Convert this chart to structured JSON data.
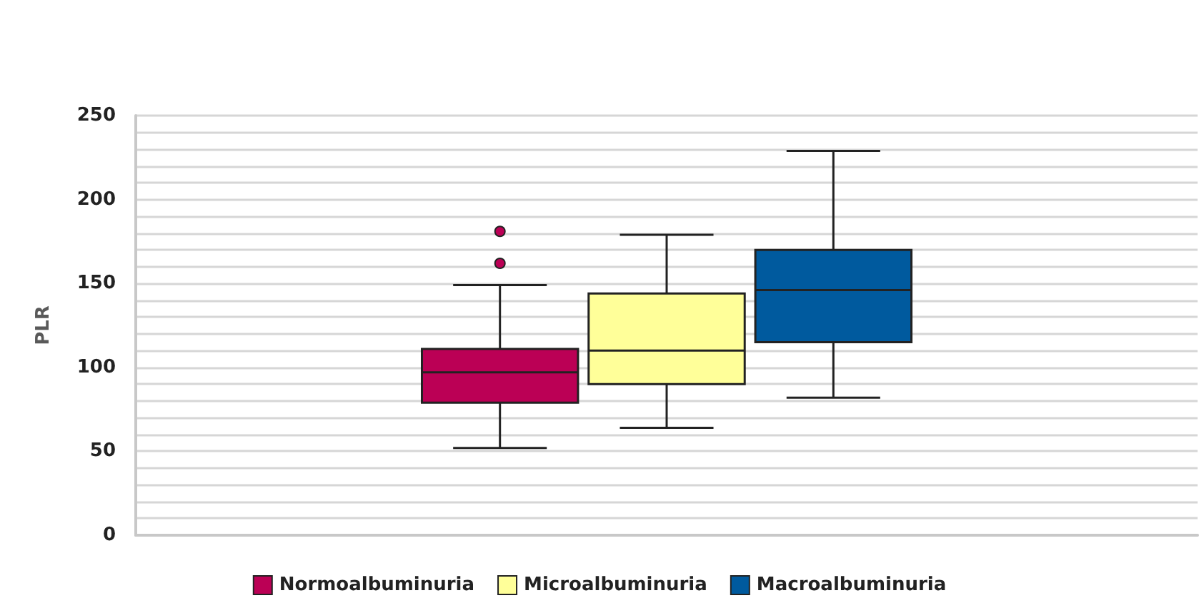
{
  "chart_data": {
    "type": "box",
    "ylabel": "PLR",
    "categories": [
      null
    ],
    "series": [
      {
        "name": "Normoalbuminuria",
        "color": "#bb0055",
        "boxes": [
          {
            "low": 52,
            "q1": 79,
            "median": 97,
            "q3": 111,
            "high": 149,
            "outliers": [
              162,
              181
            ]
          }
        ]
      },
      {
        "name": "Microalbuminuria",
        "color": "#ffff99",
        "boxes": [
          {
            "low": 64,
            "q1": 90,
            "median": 110,
            "q3": 144,
            "high": 179
          }
        ]
      },
      {
        "name": "Macroalbuminuria",
        "color": "#005a9e",
        "boxes": [
          {
            "low": 82,
            "q1": 115,
            "median": 146,
            "q3": 170,
            "high": 229
          }
        ]
      }
    ],
    "ylim": [
      0,
      250
    ],
    "yticks": [
      0,
      {
        "value": 10,
        "label": null
      },
      {
        "value": 20,
        "label": null
      },
      {
        "value": 30,
        "label": null
      },
      {
        "value": 40,
        "label": null
      },
      50,
      {
        "value": 60,
        "label": null
      },
      {
        "value": 70,
        "label": null
      },
      {
        "value": 80,
        "label": null
      },
      {
        "value": 90,
        "label": null
      },
      100,
      {
        "value": 110,
        "label": null
      },
      {
        "value": 120,
        "label": null
      },
      {
        "value": 130,
        "label": null
      },
      {
        "value": 140,
        "label": null
      },
      150,
      {
        "value": 160,
        "label": null
      },
      {
        "value": 170,
        "label": null
      },
      {
        "value": 180,
        "label": null
      },
      {
        "value": 190,
        "label": null
      },
      200,
      {
        "value": 210,
        "label": null
      },
      {
        "value": 220,
        "label": null
      },
      {
        "value": 230,
        "label": null
      },
      {
        "value": 240,
        "label": null
      },
      250
    ],
    "grid": true,
    "legend": "bottom"
  }
}
